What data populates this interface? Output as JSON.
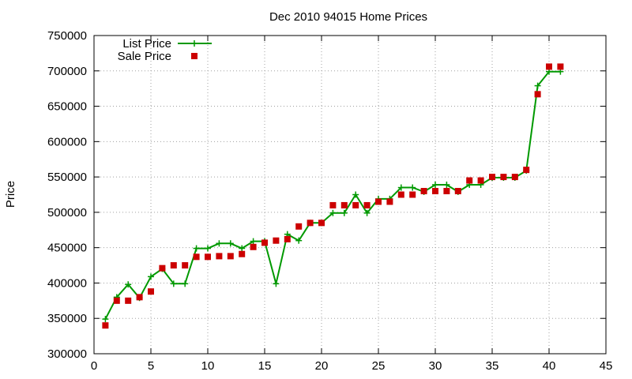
{
  "chart_data": {
    "type": "line",
    "title": "Dec 2010 94015 Home Prices",
    "xlabel": "",
    "ylabel": "Price",
    "xlim": [
      0,
      45
    ],
    "ylim": [
      300000,
      750000
    ],
    "xticks": [
      0,
      5,
      10,
      15,
      20,
      25,
      30,
      35,
      40,
      45
    ],
    "yticks": [
      300000,
      350000,
      400000,
      450000,
      500000,
      550000,
      600000,
      650000,
      700000,
      750000
    ],
    "grid": true,
    "legend_position": "top-left",
    "series": [
      {
        "name": "List Price",
        "style": "line-plus",
        "color": "#009900",
        "points": [
          [
            1,
            349000
          ],
          [
            2,
            380000
          ],
          [
            3,
            398000
          ],
          [
            4,
            379000
          ],
          [
            5,
            409000
          ],
          [
            6,
            420000
          ],
          [
            7,
            399000
          ],
          [
            8,
            399000
          ],
          [
            9,
            449000
          ],
          [
            10,
            449000
          ],
          [
            11,
            456000
          ],
          [
            12,
            456000
          ],
          [
            13,
            449000
          ],
          [
            14,
            459000
          ],
          [
            15,
            459000
          ],
          [
            16,
            399000
          ],
          [
            17,
            469000
          ],
          [
            18,
            460000
          ],
          [
            19,
            485000
          ],
          [
            20,
            485000
          ],
          [
            21,
            499000
          ],
          [
            22,
            499000
          ],
          [
            23,
            525000
          ],
          [
            24,
            499000
          ],
          [
            25,
            519000
          ],
          [
            26,
            519000
          ],
          [
            27,
            535000
          ],
          [
            28,
            535000
          ],
          [
            29,
            529000
          ],
          [
            30,
            539000
          ],
          [
            31,
            539000
          ],
          [
            32,
            529000
          ],
          [
            33,
            539000
          ],
          [
            34,
            539000
          ],
          [
            35,
            549000
          ],
          [
            36,
            549000
          ],
          [
            37,
            549000
          ],
          [
            38,
            559000
          ],
          [
            39,
            679000
          ],
          [
            40,
            699000
          ],
          [
            41,
            699000
          ]
        ]
      },
      {
        "name": "Sale Price",
        "style": "square",
        "color": "#cc0000",
        "points": [
          [
            1,
            340000
          ],
          [
            2,
            375000
          ],
          [
            3,
            375000
          ],
          [
            4,
            380000
          ],
          [
            5,
            388000
          ],
          [
            6,
            421000
          ],
          [
            7,
            425000
          ],
          [
            8,
            425000
          ],
          [
            9,
            437000
          ],
          [
            10,
            437000
          ],
          [
            11,
            438000
          ],
          [
            12,
            438000
          ],
          [
            13,
            441000
          ],
          [
            14,
            451000
          ],
          [
            15,
            457000
          ],
          [
            16,
            460000
          ],
          [
            17,
            462000
          ],
          [
            18,
            480000
          ],
          [
            19,
            485000
          ],
          [
            20,
            485000
          ],
          [
            21,
            510000
          ],
          [
            22,
            510000
          ],
          [
            23,
            510000
          ],
          [
            24,
            510000
          ],
          [
            25,
            515000
          ],
          [
            26,
            515000
          ],
          [
            27,
            525000
          ],
          [
            28,
            525000
          ],
          [
            29,
            530000
          ],
          [
            30,
            530000
          ],
          [
            31,
            530000
          ],
          [
            32,
            530000
          ],
          [
            33,
            545000
          ],
          [
            34,
            545000
          ],
          [
            35,
            550000
          ],
          [
            36,
            550000
          ],
          [
            37,
            550000
          ],
          [
            38,
            560000
          ],
          [
            39,
            667000
          ],
          [
            40,
            706000
          ],
          [
            41,
            706000
          ]
        ]
      }
    ]
  }
}
